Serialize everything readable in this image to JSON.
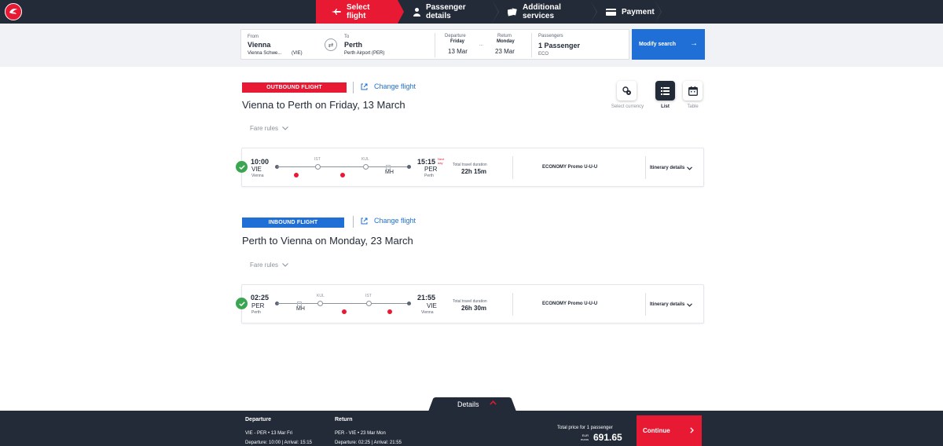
{
  "nav": {
    "steps": [
      {
        "label": "Select flight",
        "icon": "plane-icon",
        "active": true
      },
      {
        "label": "Passenger details",
        "icon": "person-icon",
        "active": false
      },
      {
        "label": "Additional services",
        "icon": "services-icon",
        "active": false
      },
      {
        "label": "Payment",
        "icon": "card-icon",
        "active": false
      }
    ]
  },
  "search": {
    "from_label": "From",
    "from_city": "Vienna",
    "from_airport": "Vienna Schwe...",
    "from_code": "(VIE)",
    "to_label": "To",
    "to_city": "Perth",
    "to_airport": "Perth Airport (PER)",
    "departure_label": "Departure",
    "departure_day": "Friday",
    "departure_date": "13 Mar",
    "range_dots": "...",
    "return_label": "Return",
    "return_day": "Monday",
    "return_date": "23 Mar",
    "passengers_label": "Passengers",
    "passengers_value": "1 Passenger",
    "cabin": "ECO",
    "modify_label": "Modify search"
  },
  "view": {
    "currency_label": "Select currency",
    "list_label": "List",
    "table_label": "Table"
  },
  "outbound": {
    "badge": "OUTBOUND FLIGHT",
    "change_label": "Change flight",
    "title": "Vienna to Perth on Friday, 13 March",
    "fare_rules": "Fare rules",
    "dep_time": "10:00",
    "dep_code": "VIE",
    "dep_city": "Vienna",
    "stops": [
      "IST",
      "KUL"
    ],
    "carrier": "MH",
    "arr_time": "15:15",
    "next_day_1": "Next",
    "next_day_2": "day",
    "arr_code": "PER",
    "arr_city": "Perth",
    "duration_label": "Total travel duration",
    "duration": "22h 15m",
    "fare_class": "ECONOMY Promo U-U-U",
    "itinerary": "Itinerary details"
  },
  "inbound": {
    "badge": "INBOUND FLIGHT",
    "change_label": "Change flight",
    "title": "Perth to Vienna on Monday, 23 March",
    "fare_rules": "Fare rules",
    "dep_time": "02:25",
    "dep_code": "PER",
    "dep_city": "Perth",
    "stops": [
      "KUL",
      "IST"
    ],
    "carrier": "MH",
    "arr_time": "21:55",
    "arr_code": "VIE",
    "arr_city": "Vienna",
    "duration_label": "Total travel duration",
    "duration": "26h 30m",
    "fare_class": "ECONOMY Promo U-U-U",
    "itinerary": "Itinerary details"
  },
  "footer": {
    "details_label": "Details",
    "departure_heading": "Departure",
    "departure_route": "VIE - PER • 13 Mar Fri",
    "departure_times": "Departure: 10:00 | Arrival: 15:15",
    "return_heading": "Return",
    "return_route": "PER - VIE • 23 Mar Mon",
    "return_times": "Departure: 02:25 | Arrival: 21:55",
    "total_label": "Total price for 1 passenger",
    "currency_1": "EUR",
    "currency_2": "euros",
    "price": "691.65",
    "continue_label": "Continue"
  },
  "colors": {
    "brand_red": "#e81932",
    "navy": "#232b38",
    "blue": "#1f6fd6",
    "success_green": "#3aa651"
  }
}
